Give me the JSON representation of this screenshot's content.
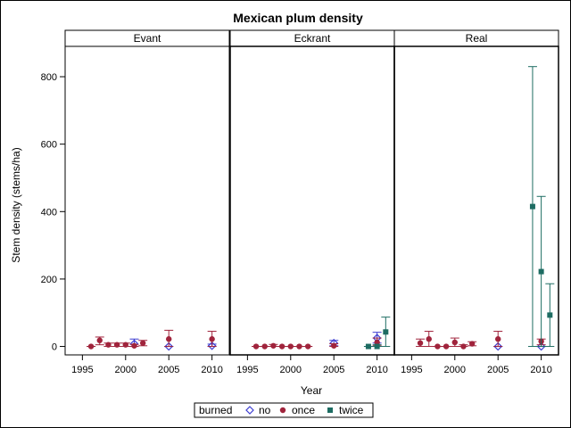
{
  "chart_data": {
    "type": "scatter",
    "title": "Mexican plum density",
    "xlabel": "Year",
    "ylabel": "Stem density (stems/ha)",
    "xlim": [
      1993,
      2012
    ],
    "ylim": [
      -25,
      890
    ],
    "x_ticks": [
      1995,
      2000,
      2005,
      2010
    ],
    "y_ticks": [
      0,
      200,
      400,
      600,
      800
    ],
    "grid": false,
    "error_bars": true,
    "legend": {
      "title": "burned",
      "position": "bottom",
      "entries": [
        {
          "name": "no",
          "marker": "diamond-open",
          "color": "#3d3dd1"
        },
        {
          "name": "once",
          "marker": "circle",
          "color": "#a0243c"
        },
        {
          "name": "twice",
          "marker": "square",
          "color": "#1d6c62"
        }
      ]
    },
    "panels": [
      {
        "label": "Evant",
        "series": [
          {
            "name": "no",
            "points": [
              {
                "x": 2001,
                "y": 8,
                "lo": 0,
                "hi": 22
              },
              {
                "x": 2005,
                "y": 0,
                "lo": 0,
                "hi": 0
              },
              {
                "x": 2010,
                "y": 2,
                "lo": 0,
                "hi": 7
              }
            ]
          },
          {
            "name": "once",
            "points": [
              {
                "x": 1996,
                "y": 0,
                "lo": 0,
                "hi": 0
              },
              {
                "x": 1997,
                "y": 18,
                "lo": 5,
                "hi": 28
              },
              {
                "x": 1998,
                "y": 5,
                "lo": 0,
                "hi": 10
              },
              {
                "x": 1999,
                "y": 5,
                "lo": 0,
                "hi": 10
              },
              {
                "x": 2000,
                "y": 5,
                "lo": 0,
                "hi": 10
              },
              {
                "x": 2001,
                "y": 2,
                "lo": 0,
                "hi": 6
              },
              {
                "x": 2002,
                "y": 10,
                "lo": 2,
                "hi": 18
              },
              {
                "x": 2005,
                "y": 22,
                "lo": 0,
                "hi": 48
              },
              {
                "x": 2010,
                "y": 22,
                "lo": 0,
                "hi": 45
              }
            ]
          },
          {
            "name": "twice",
            "points": []
          }
        ]
      },
      {
        "label": "Eckrant",
        "series": [
          {
            "name": "no",
            "points": [
              {
                "x": 2005,
                "y": 10,
                "lo": 2,
                "hi": 18
              },
              {
                "x": 2010,
                "y": 25,
                "lo": 10,
                "hi": 42
              }
            ]
          },
          {
            "name": "once",
            "points": [
              {
                "x": 1996,
                "y": 0,
                "lo": 0,
                "hi": 0
              },
              {
                "x": 1997,
                "y": 0,
                "lo": 0,
                "hi": 0
              },
              {
                "x": 1998,
                "y": 2,
                "lo": 0,
                "hi": 6
              },
              {
                "x": 1999,
                "y": 0,
                "lo": 0,
                "hi": 0
              },
              {
                "x": 2000,
                "y": 0,
                "lo": 0,
                "hi": 0
              },
              {
                "x": 2001,
                "y": 0,
                "lo": 0,
                "hi": 0
              },
              {
                "x": 2002,
                "y": 0,
                "lo": 0,
                "hi": 0
              },
              {
                "x": 2005,
                "y": 2,
                "lo": 0,
                "hi": 8
              },
              {
                "x": 2010,
                "y": 12,
                "lo": 2,
                "hi": 25
              }
            ]
          },
          {
            "name": "twice",
            "points": [
              {
                "x": 2009,
                "y": 0,
                "lo": 0,
                "hi": 0
              },
              {
                "x": 2010,
                "y": 0,
                "lo": 0,
                "hi": 5
              },
              {
                "x": 2011,
                "y": 43,
                "lo": 0,
                "hi": 87
              }
            ]
          }
        ]
      },
      {
        "label": "Real",
        "series": [
          {
            "name": "no",
            "points": [
              {
                "x": 2005,
                "y": 0,
                "lo": 0,
                "hi": 0
              },
              {
                "x": 2010,
                "y": 0,
                "lo": 0,
                "hi": 0
              }
            ]
          },
          {
            "name": "once",
            "points": [
              {
                "x": 1996,
                "y": 10,
                "lo": 0,
                "hi": 22
              },
              {
                "x": 1997,
                "y": 22,
                "lo": 0,
                "hi": 45
              },
              {
                "x": 1998,
                "y": 0,
                "lo": 0,
                "hi": 0
              },
              {
                "x": 1999,
                "y": 0,
                "lo": 0,
                "hi": 0
              },
              {
                "x": 2000,
                "y": 12,
                "lo": 0,
                "hi": 25
              },
              {
                "x": 2001,
                "y": 0,
                "lo": 0,
                "hi": 5
              },
              {
                "x": 2002,
                "y": 8,
                "lo": 2,
                "hi": 14
              },
              {
                "x": 2005,
                "y": 22,
                "lo": 0,
                "hi": 45
              },
              {
                "x": 2010,
                "y": 15,
                "lo": 5,
                "hi": 22
              }
            ]
          },
          {
            "name": "twice",
            "points": [
              {
                "x": 2009,
                "y": 415,
                "lo": 0,
                "hi": 830
              },
              {
                "x": 2010,
                "y": 222,
                "lo": 0,
                "hi": 445
              },
              {
                "x": 2011,
                "y": 93,
                "lo": 0,
                "hi": 186
              }
            ]
          }
        ]
      }
    ]
  }
}
